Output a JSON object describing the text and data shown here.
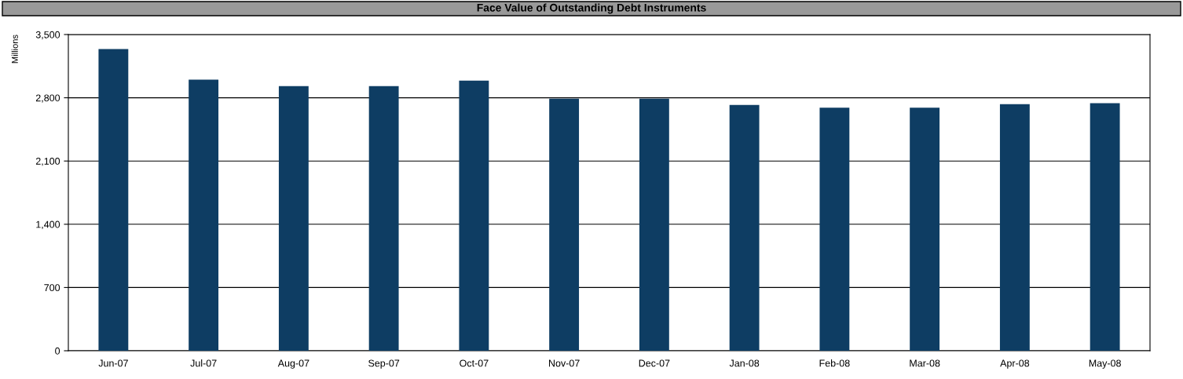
{
  "chart_data": {
    "type": "bar",
    "title": "Face Value of Outstanding Debt Instruments",
    "ylabel": "Millions",
    "categories": [
      "Jun-07",
      "Jul-07",
      "Aug-07",
      "Sep-07",
      "Oct-07",
      "Nov-07",
      "Dec-07",
      "Jan-08",
      "Feb-08",
      "Mar-08",
      "Apr-08",
      "May-08"
    ],
    "values": [
      3340,
      3000,
      2930,
      2930,
      2990,
      2790,
      2790,
      2720,
      2690,
      2690,
      2730,
      2740
    ],
    "color": "#0e3d63",
    "ylim": [
      0,
      3500
    ],
    "yticks": [
      {
        "value": 0,
        "label": "0"
      },
      {
        "value": 700,
        "label": "700"
      },
      {
        "value": 1400,
        "label": "1,400"
      },
      {
        "value": 2100,
        "label": "2,100"
      },
      {
        "value": 2800,
        "label": "2,800"
      },
      {
        "value": 3500,
        "label": "3,500"
      }
    ],
    "grid": "y",
    "legend": false
  }
}
